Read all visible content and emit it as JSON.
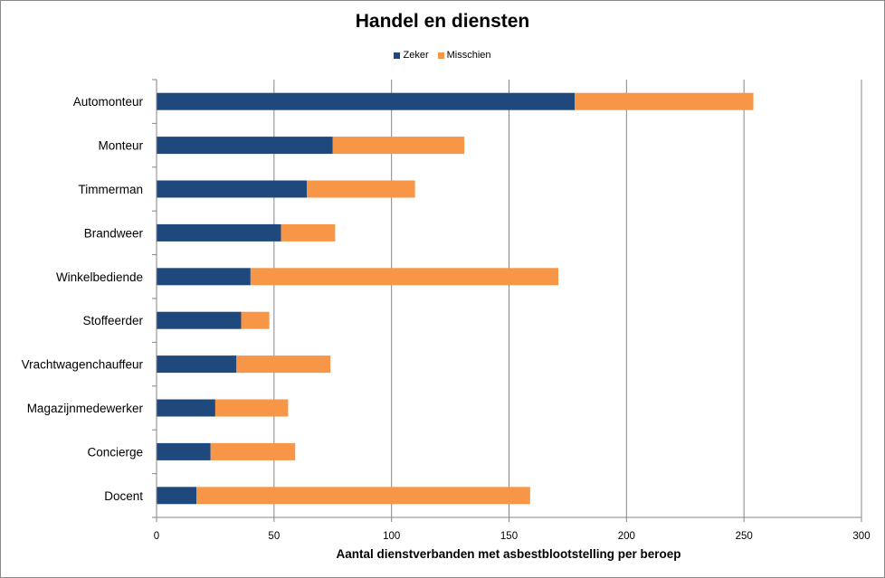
{
  "chart_data": {
    "type": "bar",
    "orientation": "horizontal",
    "stacked": true,
    "title": "Handel en diensten",
    "xlabel": "Aantal dienstverbanden met asbestblootstelling per beroep",
    "ylabel": "",
    "xlim": [
      0,
      300
    ],
    "xticks": [
      0,
      50,
      100,
      150,
      200,
      250,
      300
    ],
    "grid": "vertical",
    "legend_position": "top",
    "categories": [
      "Automonteur",
      "Monteur",
      "Timmerman",
      "Brandweer",
      "Winkelbediende",
      "Stoffeerder",
      "Vrachtwagenchauffeur",
      "Magazijnmedewerker",
      "Concierge",
      "Docent"
    ],
    "series": [
      {
        "name": "Zeker",
        "color": "#1F497D",
        "values": [
          178,
          75,
          64,
          53,
          40,
          36,
          34,
          25,
          23,
          17
        ]
      },
      {
        "name": "Misschien",
        "color": "#F79646",
        "values": [
          76,
          56,
          46,
          23,
          131,
          12,
          40,
          31,
          36,
          142
        ]
      }
    ]
  }
}
